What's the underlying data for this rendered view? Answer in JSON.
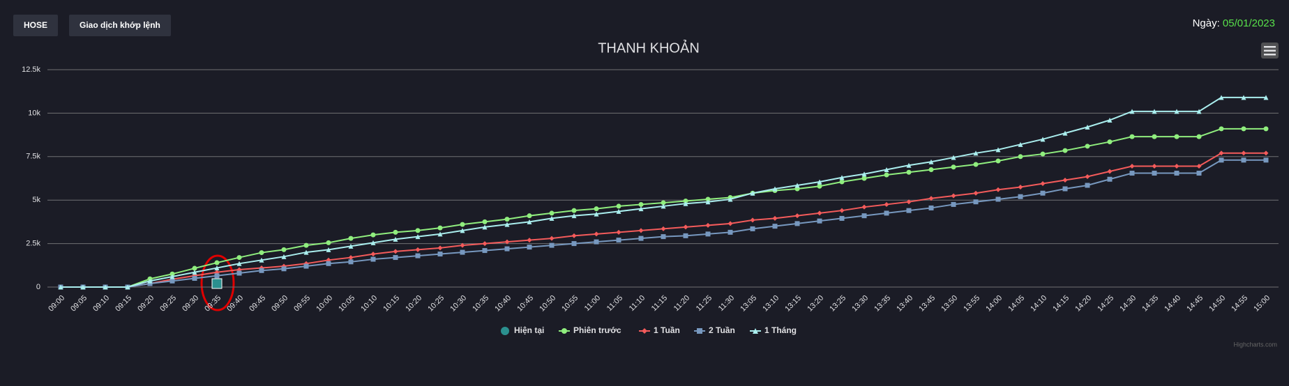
{
  "ui": {
    "buttons": [
      "HOSE",
      "Giao dịch khớp lệnh"
    ],
    "date_label": "Ngày:",
    "date": "05/01/2023",
    "credits": "Highcharts.com"
  },
  "chart_data": {
    "type": "line",
    "title": "THANH KHOẢN",
    "categories": [
      "09:00",
      "09:05",
      "09:10",
      "09:15",
      "09:20",
      "09:25",
      "09:30",
      "09:35",
      "09:40",
      "09:45",
      "09:50",
      "09:55",
      "10:00",
      "10:05",
      "10:10",
      "10:15",
      "10:20",
      "10:25",
      "10:30",
      "10:35",
      "10:40",
      "10:45",
      "10:50",
      "10:55",
      "11:00",
      "11:05",
      "11:10",
      "11:15",
      "11:20",
      "11:25",
      "11:30",
      "13:05",
      "13:10",
      "13:15",
      "13:20",
      "13:25",
      "13:30",
      "13:35",
      "13:40",
      "13:45",
      "13:50",
      "13:55",
      "14:00",
      "14:05",
      "14:10",
      "14:15",
      "14:20",
      "14:25",
      "14:30",
      "14:35",
      "14:40",
      "14:45",
      "14:50",
      "14:55",
      "15:00"
    ],
    "ylim": [
      0,
      12500
    ],
    "yticks": [
      0,
      {
        "value": 2500,
        "label": "2.5k"
      },
      {
        "value": 5000,
        "label": "5k"
      },
      {
        "value": 7500,
        "label": "7.5k"
      },
      {
        "value": 10000,
        "label": "10k"
      },
      {
        "value": 12500,
        "label": "12.5k"
      }
    ],
    "grid": true,
    "legend": "bottom",
    "series": [
      {
        "name": "Hiện tại",
        "color": "#2b908f",
        "marker": "square",
        "values": [
          null,
          null,
          null,
          null,
          null,
          null,
          null,
          200,
          null,
          null,
          null,
          null,
          null,
          null,
          null,
          null,
          null,
          null,
          null,
          null,
          null,
          null,
          null,
          null,
          null,
          null,
          null,
          null,
          null,
          null,
          null,
          null,
          null,
          null,
          null,
          null,
          null,
          null,
          null,
          null,
          null,
          null,
          null,
          null,
          null,
          null,
          null,
          null,
          null,
          null,
          null,
          null,
          null,
          null,
          null
        ]
      },
      {
        "name": "Phiên trước",
        "color": "#90ee7e",
        "marker": "circle",
        "values": [
          0,
          0,
          0,
          0,
          470,
          750,
          1080,
          1400,
          1700,
          1980,
          2150,
          2400,
          2550,
          2800,
          3000,
          3150,
          3250,
          3400,
          3600,
          3750,
          3900,
          4100,
          4250,
          4400,
          4500,
          4650,
          4750,
          4850,
          4950,
          5050,
          5150,
          5400,
          5550,
          5650,
          5800,
          6050,
          6250,
          6450,
          6600,
          6750,
          6900,
          7050,
          7250,
          7500,
          7650,
          7850,
          8100,
          8350,
          8650,
          8650,
          8650,
          8650,
          9100,
          9100,
          9100
        ]
      },
      {
        "name": "1 Tuần",
        "color": "#f45b5b",
        "marker": "diamond",
        "values": [
          0,
          0,
          0,
          0,
          200,
          450,
          650,
          850,
          1000,
          1100,
          1200,
          1350,
          1550,
          1700,
          1900,
          2050,
          2150,
          2250,
          2400,
          2500,
          2600,
          2700,
          2800,
          2950,
          3050,
          3150,
          3250,
          3350,
          3450,
          3550,
          3650,
          3850,
          3950,
          4100,
          4250,
          4400,
          4600,
          4750,
          4900,
          5100,
          5250,
          5400,
          5600,
          5750,
          5950,
          6150,
          6350,
          6650,
          6950,
          6950,
          6950,
          6950,
          7700,
          7700,
          7700
        ]
      },
      {
        "name": "2 Tuần",
        "color": "#7798bf",
        "marker": "square",
        "values": [
          0,
          0,
          0,
          0,
          200,
          350,
          500,
          650,
          800,
          950,
          1050,
          1200,
          1350,
          1450,
          1600,
          1700,
          1800,
          1900,
          2000,
          2100,
          2200,
          2300,
          2400,
          2500,
          2600,
          2700,
          2800,
          2900,
          2950,
          3050,
          3150,
          3350,
          3500,
          3650,
          3800,
          3950,
          4100,
          4250,
          4400,
          4550,
          4750,
          4900,
          5050,
          5200,
          5400,
          5650,
          5850,
          6200,
          6550,
          6550,
          6550,
          6550,
          7300,
          7300,
          7300
        ]
      },
      {
        "name": "1 Tháng",
        "color": "#aaeeee",
        "marker": "triangle",
        "values": [
          0,
          0,
          0,
          0,
          350,
          600,
          850,
          1100,
          1350,
          1550,
          1750,
          2000,
          2150,
          2350,
          2550,
          2750,
          2900,
          3050,
          3250,
          3450,
          3600,
          3750,
          3950,
          4100,
          4200,
          4350,
          4500,
          4650,
          4800,
          4900,
          5050,
          5400,
          5650,
          5850,
          6050,
          6300,
          6500,
          6750,
          7000,
          7200,
          7450,
          7700,
          7900,
          8200,
          8500,
          8850,
          9200,
          9600,
          10100,
          10100,
          10100,
          10100,
          10900,
          10900,
          10900
        ]
      }
    ]
  }
}
